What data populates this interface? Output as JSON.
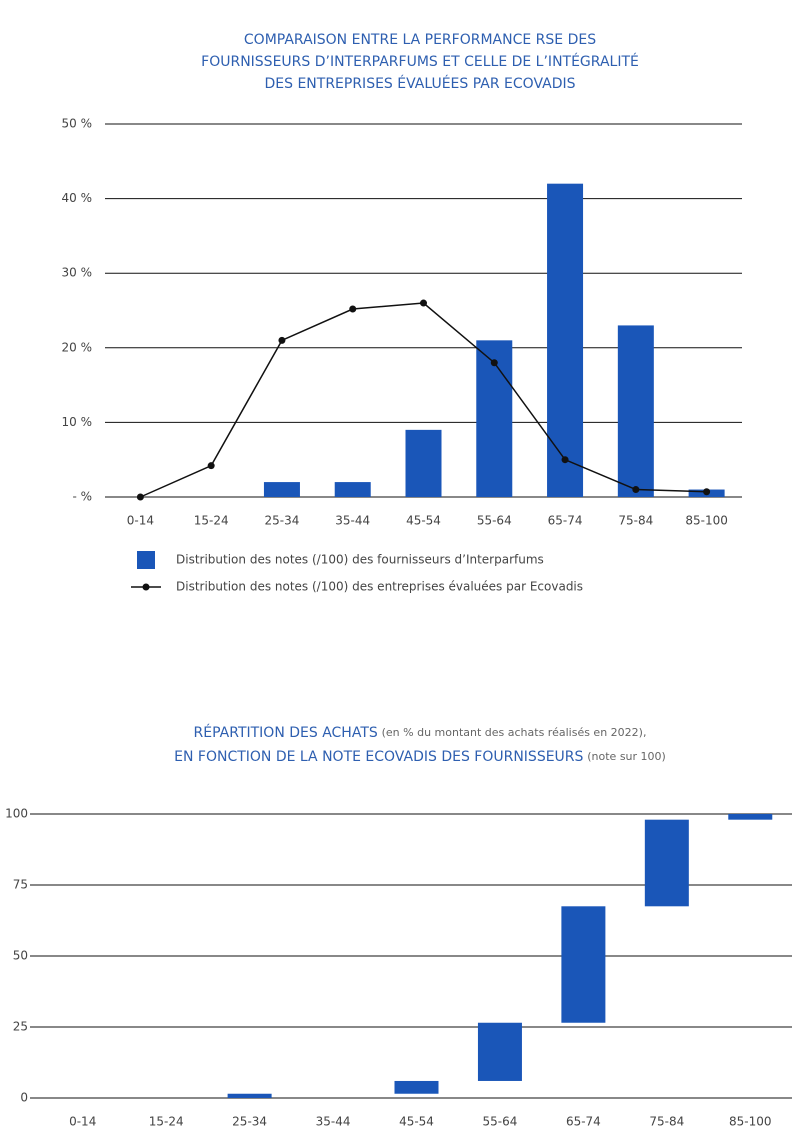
{
  "chart_data": [
    {
      "type": "combo",
      "title": [
        "COMPARAISON ENTRE LA PERFORMANCE RSE DES",
        "FOURNISSEURS D’INTERPARFUMS ET CELLE DE L’INTÉGRALITÉ",
        "DES ENTREPRISES ÉVALUÉES PAR ECOVADIS"
      ],
      "categories": [
        "0-14",
        "15-24",
        "25-34",
        "35-44",
        "45-54",
        "55-64",
        "65-74",
        "75-84",
        "85-100"
      ],
      "series": [
        {
          "name": "Distribution des notes (/100) des fournisseurs d’Interparfums",
          "kind": "bar",
          "color": "#1a56b8",
          "values": [
            0,
            0,
            2,
            2,
            9,
            21,
            42,
            23,
            1
          ]
        },
        {
          "name": "Distribution des notes (/100) des entreprises évaluées par Ecovadis",
          "kind": "line",
          "color": "#111111",
          "values": [
            0,
            4.2,
            21,
            25.2,
            26,
            18,
            5,
            1,
            0.7
          ]
        }
      ],
      "ylim": [
        0,
        50
      ],
      "yticks": [
        {
          "value": 0,
          "label": "- %"
        },
        {
          "value": 10,
          "label": "10 %"
        },
        {
          "value": 20,
          "label": "20 %"
        },
        {
          "value": 30,
          "label": "30 %"
        },
        {
          "value": 40,
          "label": "40 %"
        },
        {
          "value": 50,
          "label": "50 %"
        }
      ],
      "grid": true
    },
    {
      "type": "waterfall",
      "title": [
        "RÉPARTITION DES ACHATS",
        "(en % du montant des achats réalisés en 2022),",
        "EN FONCTION DE LA NOTE ECOVADIS DES FOURNISSEURS",
        "(note sur 100)"
      ],
      "categories": [
        "0-14",
        "15-24",
        "25-34",
        "35-44",
        "45-54",
        "55-64",
        "65-74",
        "75-84",
        "85-100"
      ],
      "values": [
        0,
        0,
        1.5,
        0,
        4.5,
        20.5,
        41,
        30.5,
        2
      ],
      "color": "#1a56b8",
      "ylim": [
        0,
        100
      ],
      "yticks": [
        0,
        25,
        50,
        75,
        100
      ],
      "grid": true
    }
  ]
}
